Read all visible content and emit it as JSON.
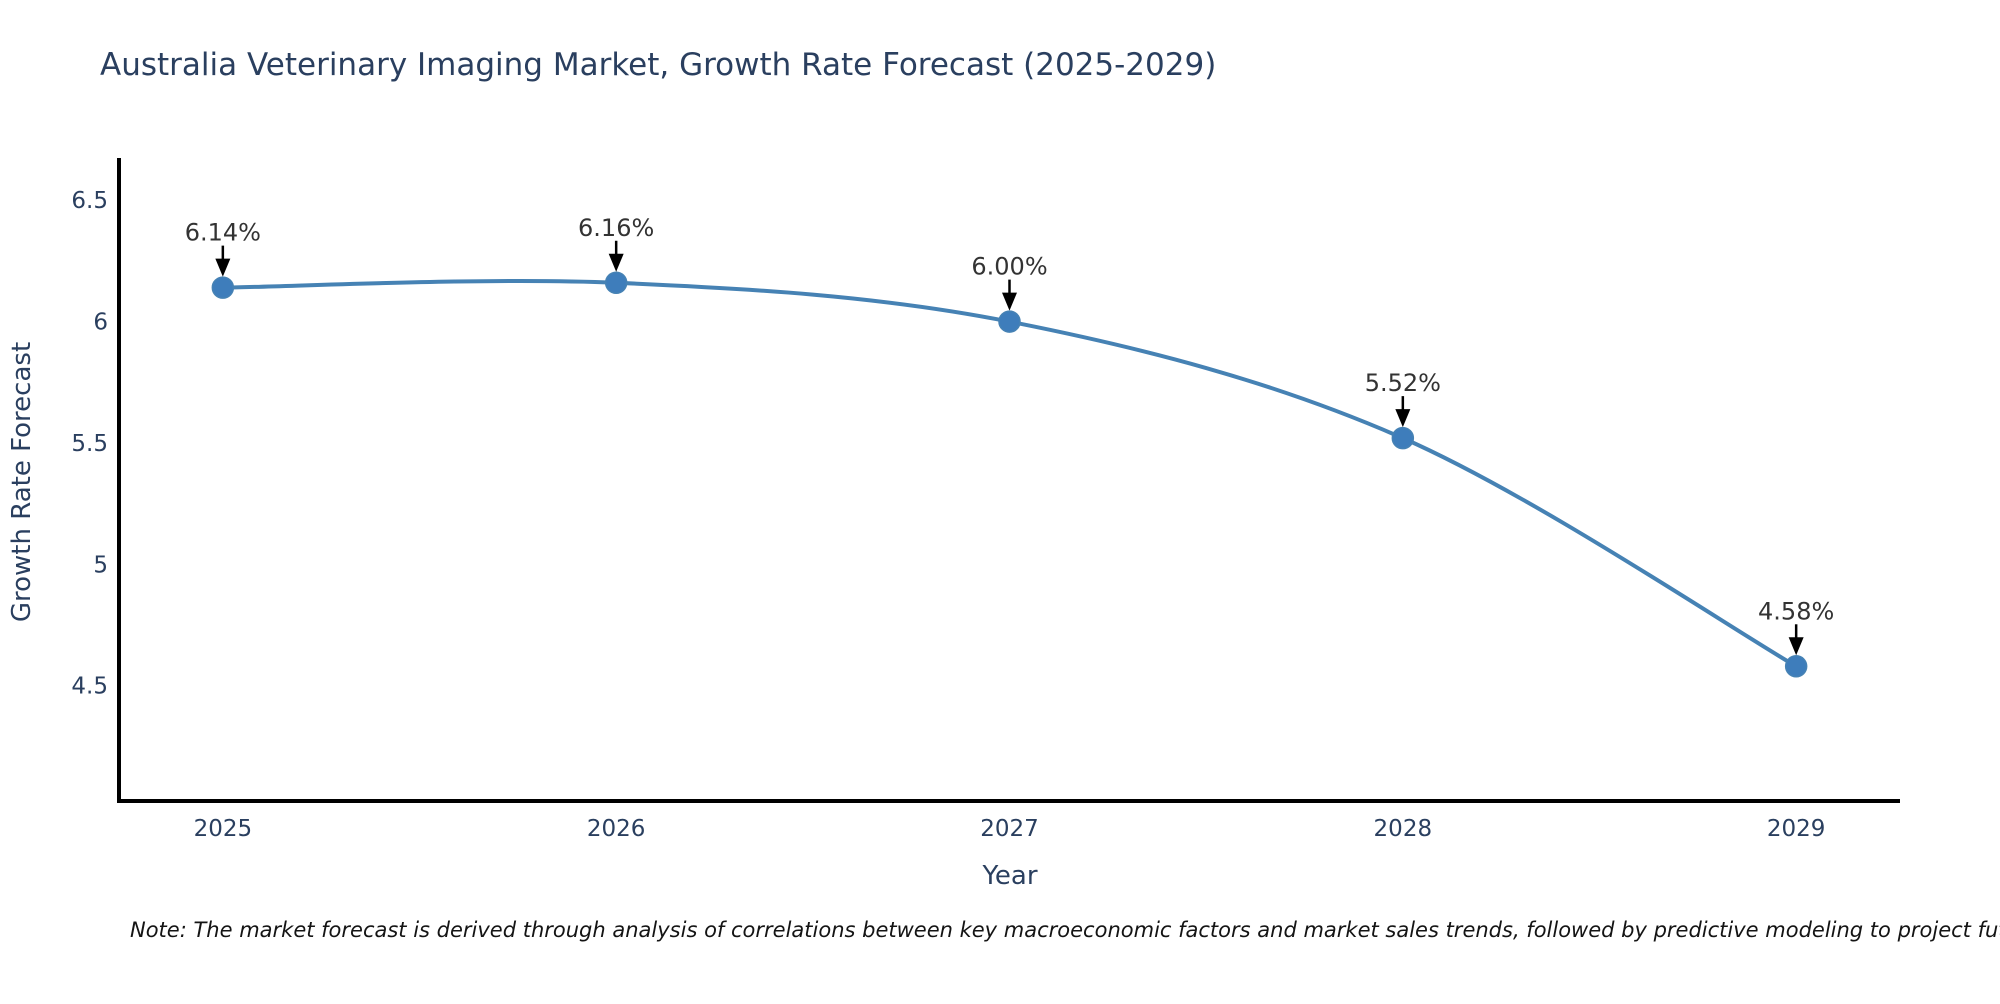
{
  "title": "Australia Veterinary Imaging Market, Growth Rate Forecast (2025-2029)",
  "note": "Note: The market forecast is derived through analysis of correlations between key macroeconomic factors and market sales trends, followed by predictive modeling to project future sales",
  "chart_data": {
    "type": "line",
    "title": "Australia Veterinary Imaging Market, Growth Rate Forecast (2025-2029)",
    "xlabel": "Year",
    "ylabel": "Growth Rate Forecast",
    "curve": "spline",
    "grid": false,
    "legend": "none",
    "xlim": [
      2024.736,
      2029.264
    ],
    "ylim": [
      4.025,
      6.674
    ],
    "points": [
      {
        "x": 2025,
        "y": 6.14,
        "label": "6.14%"
      },
      {
        "x": 2026,
        "y": 6.16,
        "label": "6.16%"
      },
      {
        "x": 2027,
        "y": 6.0,
        "label": "6.00%"
      },
      {
        "x": 2028,
        "y": 5.52,
        "label": "5.52%"
      },
      {
        "x": 2029,
        "y": 4.58,
        "label": "4.58%"
      }
    ],
    "x_ticks": [
      {
        "value": 2025,
        "label": "2025"
      },
      {
        "value": 2026,
        "label": "2026"
      },
      {
        "value": 2027,
        "label": "2027"
      },
      {
        "value": 2028,
        "label": "2028"
      },
      {
        "value": 2029,
        "label": "2029"
      }
    ],
    "y_ticks": [
      {
        "value": 6.5,
        "label": "6.5"
      },
      {
        "value": 6.0,
        "label": "6"
      },
      {
        "value": 5.5,
        "label": "5.5"
      },
      {
        "value": 5.0,
        "label": "5"
      },
      {
        "value": 4.5,
        "label": "4.5"
      }
    ],
    "colors": {
      "line": "#4682b4",
      "marker": "#3e7dbb",
      "axis_line": "#000000",
      "text": "#2a3f5f",
      "annotation_text": "#333333",
      "arrow": "#000000"
    }
  }
}
